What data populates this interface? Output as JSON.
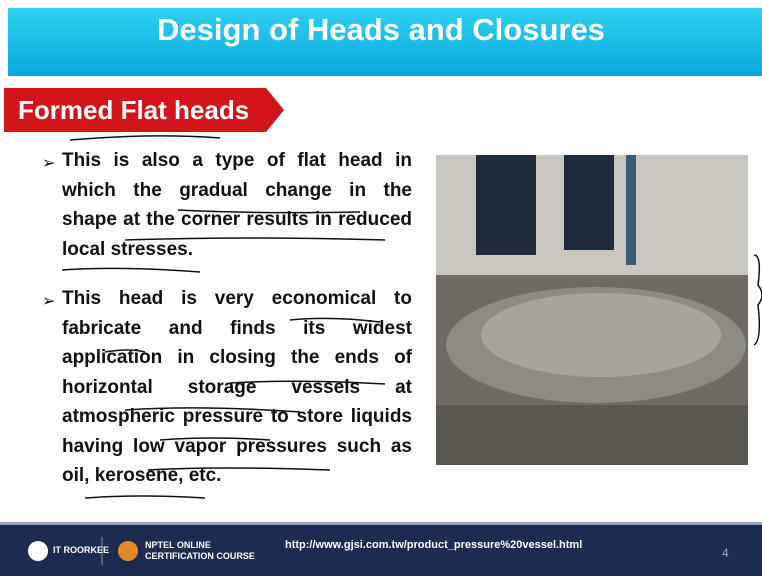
{
  "header": {
    "title": "Design of Heads and Closures"
  },
  "section": {
    "label": "Formed Flat heads"
  },
  "bullets": [
    [
      "This is also a type of flat head in",
      "which the gradual change in the",
      "shape at the corner results in reduced",
      "local stresses."
    ],
    [
      "This head is very economical to",
      "fabricate and finds its widest",
      "application in closing the ends of",
      "horizontal storage vessels at",
      "atmospheric pressure to store liquids",
      "having low vapor pressures such as",
      "oil, kerosene, etc."
    ]
  ],
  "footer": {
    "institute": "IT ROORKEE",
    "course_line1": "NPTEL ONLINE",
    "course_line2": "CERTIFICATION COURSE",
    "url": "http://www.gjsi.com.tw/product_pressure%20vessel.html",
    "page": "4"
  }
}
